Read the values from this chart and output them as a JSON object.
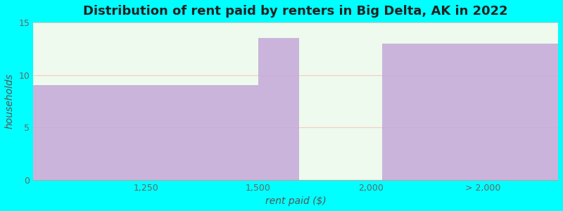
{
  "title": "Distribution of rent paid by renters in Big Delta, AK in 2022",
  "xlabel": "rent paid ($)",
  "ylabel": "households",
  "background_color": "#00FFFF",
  "plot_bg_color": "#edfaed",
  "bar_color": "#c4a8d8",
  "ylim": [
    0,
    15
  ],
  "yticks": [
    0,
    5,
    10,
    15
  ],
  "xtick_labels": [
    "1,250",
    "1,500",
    "2,000",
    "> 2,000"
  ],
  "grid_color": "#ffaaaa",
  "grid_alpha": 0.6,
  "title_fontsize": 13,
  "label_fontsize": 10,
  "xlim": [
    0,
    7.0
  ],
  "x_tick_positions": [
    1.5,
    3.0,
    4.5,
    6.0
  ],
  "bar_defs": [
    {
      "x_start": 0.0,
      "x_end": 3.0,
      "height": 9
    },
    {
      "x_start": 3.0,
      "x_end": 3.55,
      "height": 13.5
    },
    {
      "x_start": 3.55,
      "x_end": 4.65,
      "height": 0
    },
    {
      "x_start": 4.65,
      "x_end": 7.0,
      "height": 13
    }
  ]
}
